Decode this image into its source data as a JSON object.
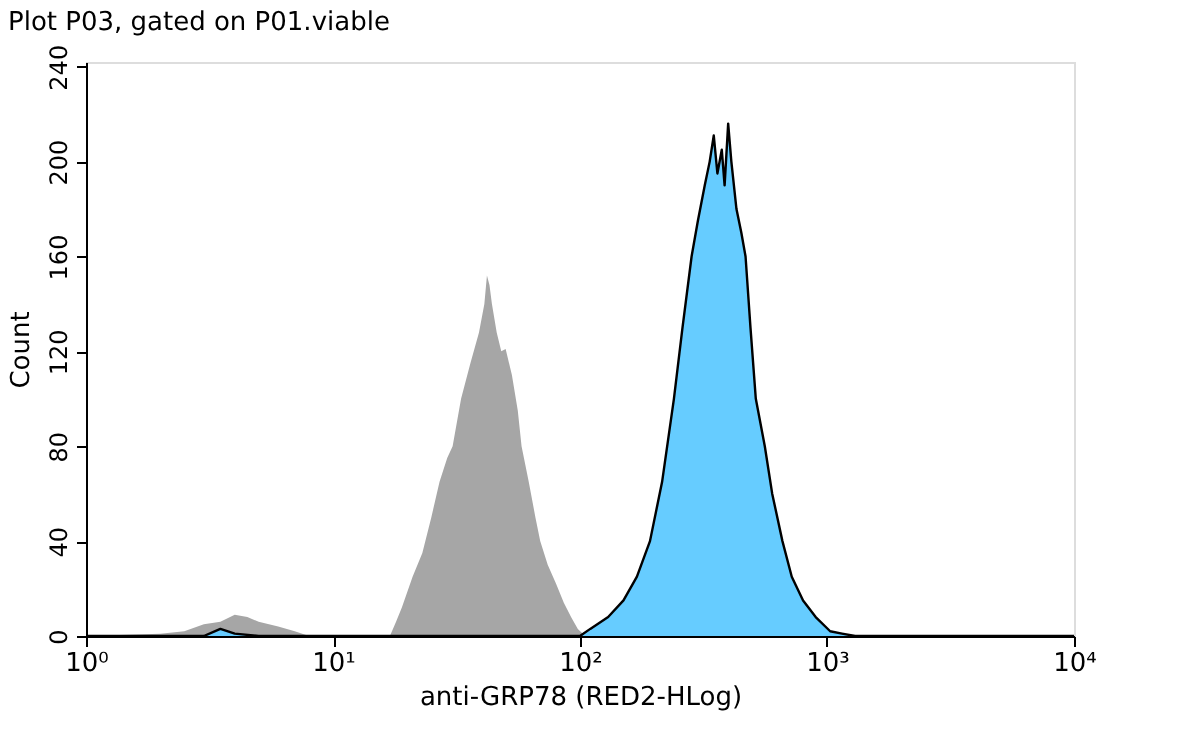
{
  "chart_data": {
    "type": "area",
    "title": "Plot P03, gated on P01.viable",
    "xlabel": "anti-GRP78 (RED2-HLog)",
    "ylabel": "Count",
    "log": "x",
    "grid": false,
    "xlim": [
      1,
      10000
    ],
    "xticks": [
      {
        "value": 1,
        "label": "10⁰"
      },
      {
        "value": 10,
        "label": "10¹"
      },
      {
        "value": 100,
        "label": "10²"
      },
      {
        "value": 1000,
        "label": "10³"
      },
      {
        "value": 10000,
        "label": "10⁴"
      }
    ],
    "ylim": [
      0,
      242
    ],
    "yticks": [
      0,
      40,
      80,
      120,
      160,
      200,
      240
    ],
    "series": [
      {
        "color": "#a6a6a6",
        "x": [
          1,
          2,
          2.5,
          3,
          3.5,
          4,
          4.5,
          5,
          6,
          7,
          8,
          17,
          18,
          19,
          21,
          23,
          25,
          27,
          29,
          30.5,
          33,
          36,
          39,
          41,
          42,
          43,
          44,
          46,
          48,
          50,
          53,
          56,
          58,
          62,
          66,
          69,
          74,
          80,
          86,
          92,
          98,
          105,
          10000
        ],
        "values": [
          0,
          1,
          2,
          5,
          6,
          9,
          8,
          6,
          4,
          2,
          0,
          0,
          6,
          12,
          25,
          35,
          50,
          65,
          75,
          80,
          100,
          115,
          128,
          140,
          152,
          148,
          140,
          128,
          120,
          121,
          110,
          95,
          80,
          65,
          50,
          40,
          30,
          22,
          14,
          8,
          3,
          0,
          0
        ]
      },
      {
        "color": "#66ccff",
        "x": [
          1,
          3,
          3.5,
          4,
          5,
          100,
          110,
          130,
          150,
          170,
          192,
          215,
          240,
          260,
          283,
          300,
          320,
          335,
          348,
          360,
          375,
          385,
          398,
          410,
          430,
          450,
          468,
          490,
          515,
          560,
          600,
          660,
          720,
          800,
          900,
          1030,
          1150,
          1300,
          10000
        ],
        "values": [
          0,
          0,
          3,
          1,
          0,
          0,
          3,
          8,
          15,
          25,
          40,
          65,
          100,
          130,
          160,
          175,
          190,
          200,
          211,
          195,
          205,
          190,
          216,
          200,
          180,
          170,
          160,
          130,
          100,
          80,
          60,
          40,
          25,
          15,
          8,
          2,
          1,
          0,
          0
        ]
      }
    ]
  }
}
